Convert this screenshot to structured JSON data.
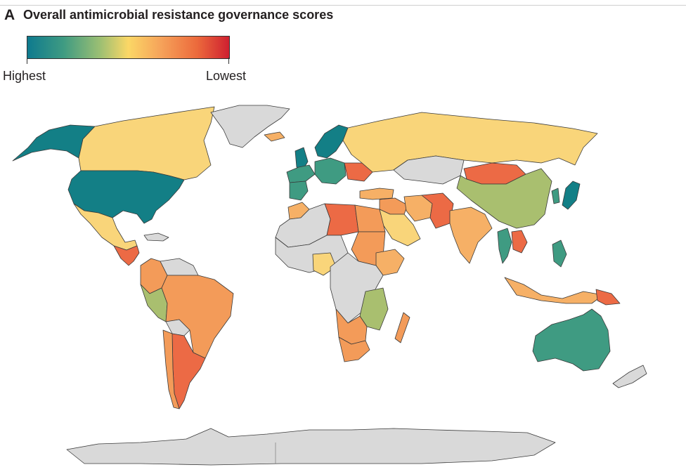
{
  "panel": {
    "letter": "A",
    "title": "Overall antimicrobial resistance governance scores"
  },
  "legend": {
    "high_label": "Highest",
    "low_label": "Lowest",
    "scale_colors": [
      "#0e7a8e",
      "#3f9b82",
      "#9cbf73",
      "#fbd766",
      "#f6a35a",
      "#ec6a3c",
      "#cf2030"
    ],
    "no_data_color": "#d9d9d9"
  },
  "colors": {
    "border": "#3a3a3a",
    "teal_dark": "#137f86",
    "teal_green": "#3f9b82",
    "olive_green": "#a9bf6f",
    "yellow": "#f9d57a",
    "light_orange": "#f6b066",
    "orange": "#f39b59",
    "red_orange": "#ec6a45",
    "no_data": "#d9d9d9"
  },
  "regions": [
    {
      "name": "alaska",
      "fill": "teal_dark"
    },
    {
      "name": "canada",
      "fill": "yellow"
    },
    {
      "name": "united-states",
      "fill": "teal_dark"
    },
    {
      "name": "greenland",
      "fill": "no_data"
    },
    {
      "name": "mexico",
      "fill": "yellow"
    },
    {
      "name": "central-america",
      "fill": "red_orange"
    },
    {
      "name": "caribbean",
      "fill": "no_data"
    },
    {
      "name": "south-america-north",
      "fill": "orange"
    },
    {
      "name": "venezuela-guyana",
      "fill": "no_data"
    },
    {
      "name": "peru",
      "fill": "olive_green"
    },
    {
      "name": "brazil",
      "fill": "orange"
    },
    {
      "name": "bolivia",
      "fill": "no_data"
    },
    {
      "name": "argentina",
      "fill": "red_orange"
    },
    {
      "name": "chile",
      "fill": "orange"
    },
    {
      "name": "iceland",
      "fill": "light_orange"
    },
    {
      "name": "united-kingdom",
      "fill": "teal_dark"
    },
    {
      "name": "scandinavia",
      "fill": "teal_dark"
    },
    {
      "name": "western-europe",
      "fill": "teal_green"
    },
    {
      "name": "iberia",
      "fill": "teal_green"
    },
    {
      "name": "central-europe",
      "fill": "teal_green"
    },
    {
      "name": "eastern-europe",
      "fill": "red_orange"
    },
    {
      "name": "russia",
      "fill": "yellow"
    },
    {
      "name": "kazakhstan",
      "fill": "no_data"
    },
    {
      "name": "mongolia",
      "fill": "red_orange"
    },
    {
      "name": "china",
      "fill": "olive_green"
    },
    {
      "name": "japan",
      "fill": "teal_dark"
    },
    {
      "name": "korea",
      "fill": "teal_green"
    },
    {
      "name": "turkey",
      "fill": "light_orange"
    },
    {
      "name": "middle-east",
      "fill": "orange"
    },
    {
      "name": "saudi-arabia",
      "fill": "yellow"
    },
    {
      "name": "iran",
      "fill": "light_orange"
    },
    {
      "name": "afghanistan-pakistan",
      "fill": "red_orange"
    },
    {
      "name": "india",
      "fill": "light_orange"
    },
    {
      "name": "southeast-asia",
      "fill": "teal_green"
    },
    {
      "name": "vietnam-laos",
      "fill": "red_orange"
    },
    {
      "name": "indonesia",
      "fill": "light_orange"
    },
    {
      "name": "philippines",
      "fill": "teal_green"
    },
    {
      "name": "papua-new-guinea",
      "fill": "red_orange"
    },
    {
      "name": "australia",
      "fill": "teal_green"
    },
    {
      "name": "new-zealand",
      "fill": "no_data"
    },
    {
      "name": "north-africa-west",
      "fill": "no_data"
    },
    {
      "name": "morocco",
      "fill": "light_orange"
    },
    {
      "name": "libya",
      "fill": "red_orange"
    },
    {
      "name": "egypt",
      "fill": "orange"
    },
    {
      "name": "west-africa",
      "fill": "no_data"
    },
    {
      "name": "nigeria",
      "fill": "yellow"
    },
    {
      "name": "sudan",
      "fill": "orange"
    },
    {
      "name": "ethiopia",
      "fill": "light_orange"
    },
    {
      "name": "central-africa",
      "fill": "no_data"
    },
    {
      "name": "east-africa",
      "fill": "olive_green"
    },
    {
      "name": "southern-africa",
      "fill": "orange"
    },
    {
      "name": "south-africa",
      "fill": "orange"
    },
    {
      "name": "madagascar",
      "fill": "orange"
    },
    {
      "name": "antarctica",
      "fill": "no_data"
    }
  ]
}
